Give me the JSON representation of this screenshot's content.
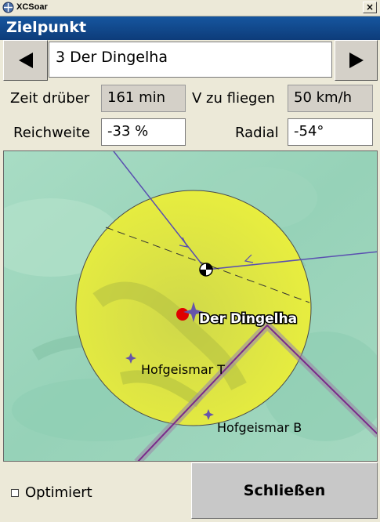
{
  "window": {
    "app_title": "XCSoar",
    "close_glyph": "×"
  },
  "header": {
    "title": "Zielpunkt"
  },
  "waypoint": {
    "value": "3 Der Dingelha",
    "prev_icon": "arrow-left-icon",
    "next_icon": "arrow-right-icon"
  },
  "fields": {
    "zeit_label": "Zeit drüber",
    "zeit_value": "161 min",
    "v_label": "V zu fliegen",
    "v_value": "50 km/h",
    "reichweite_label": "Reichweite",
    "reichweite_value": "-33 %",
    "radial_label": "Radial",
    "radial_value": "-54°"
  },
  "map": {
    "target_label": "Der Dingelha",
    "poi_1": "Hofgeismar T",
    "poi_2": "Hofgeismar B",
    "colors": {
      "sector": "#e4ec3c",
      "terrain": "#9ed8c0",
      "route": "#7a2a8a"
    }
  },
  "footer": {
    "optimiert_label": "Optimiert",
    "optimiert_checked": false,
    "close_label": "Schließen"
  }
}
